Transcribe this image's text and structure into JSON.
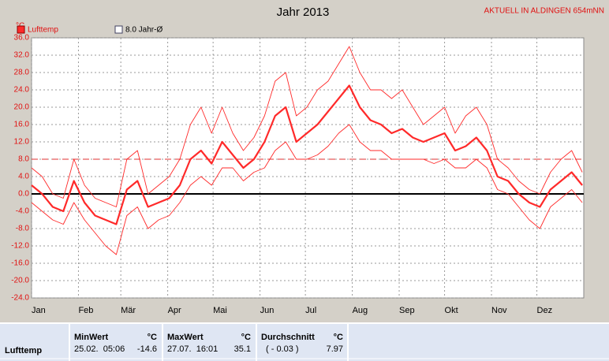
{
  "chart_data": {
    "type": "line",
    "title": "Jahr 2013",
    "station": "AKTUELL IN ALDINGEN 654mNN",
    "y_unit": "°C",
    "x": [
      1,
      8,
      15,
      22,
      29,
      36,
      43,
      50,
      57,
      64,
      71,
      78,
      85,
      92,
      99,
      106,
      113,
      120,
      127,
      134,
      141,
      148,
      155,
      162,
      169,
      176,
      183,
      190,
      197,
      204,
      211,
      218,
      225,
      232,
      239,
      246,
      253,
      260,
      267,
      274,
      281,
      288,
      295,
      302,
      309,
      316,
      323,
      330,
      337,
      344,
      351,
      358,
      365
    ],
    "series": [
      {
        "name": "Lufttemp",
        "color": "#ff2a2a",
        "width": 2.2,
        "values": [
          2,
          0,
          -3,
          -4,
          3,
          -2,
          -5,
          -6,
          -7,
          1,
          3,
          -3,
          -2,
          -1,
          2,
          8,
          10,
          7,
          12,
          9,
          6,
          8,
          12,
          18,
          20,
          12,
          14,
          16,
          19,
          22,
          25,
          20,
          17,
          16,
          14,
          15,
          13,
          12,
          13,
          14,
          10,
          11,
          13,
          10,
          4,
          3,
          0,
          -2,
          -3,
          1,
          3,
          5,
          2
        ]
      },
      {
        "color": "#ff2a2a",
        "width": 0.9,
        "values": [
          6,
          4,
          0,
          -1,
          8,
          2,
          -1,
          -2,
          -3,
          8,
          10,
          0,
          2,
          4,
          8,
          16,
          20,
          14,
          20,
          14,
          10,
          13,
          18,
          26,
          28,
          18,
          20,
          24,
          26,
          30,
          34,
          28,
          24,
          24,
          22,
          24,
          20,
          16,
          18,
          20,
          14,
          18,
          20,
          16,
          8,
          6,
          3,
          1,
          0,
          5,
          8,
          10,
          5
        ]
      },
      {
        "color": "#ff2a2a",
        "width": 0.9,
        "values": [
          -2,
          -4,
          -6,
          -7,
          -2,
          -6,
          -9,
          -12,
          -14,
          -5,
          -3,
          -8,
          -6,
          -5,
          -2,
          2,
          4,
          2,
          6,
          6,
          3,
          5,
          6,
          10,
          12,
          8,
          8,
          9,
          11,
          14,
          16,
          12,
          10,
          10,
          8,
          8,
          8,
          8,
          7,
          8,
          6,
          6,
          8,
          6,
          1,
          0,
          -3,
          -6,
          -8,
          -3,
          -1,
          1,
          -2
        ]
      }
    ],
    "reference": {
      "value": 8.0,
      "label": "8.0 Jahr-Ø",
      "color": "#e03030"
    },
    "xlim": [
      1,
      366
    ],
    "xticks": [
      {
        "value": 1,
        "label": "Jan"
      },
      {
        "value": 32,
        "label": "Feb"
      },
      {
        "value": 60,
        "label": "Mär"
      },
      {
        "value": 91,
        "label": "Apr"
      },
      {
        "value": 121,
        "label": "Mai"
      },
      {
        "value": 152,
        "label": "Jun"
      },
      {
        "value": 182,
        "label": "Jul"
      },
      {
        "value": 213,
        "label": "Aug"
      },
      {
        "value": 244,
        "label": "Sep"
      },
      {
        "value": 274,
        "label": "Okt"
      },
      {
        "value": 305,
        "label": "Nov"
      },
      {
        "value": 335,
        "label": "Dez"
      }
    ],
    "ylim": [
      -24,
      36
    ],
    "yticks": [
      {
        "value": 36,
        "label": "36.0"
      },
      {
        "value": 32,
        "label": "32.0"
      },
      {
        "value": 28,
        "label": "28.0"
      },
      {
        "value": 24,
        "label": "24.0"
      },
      {
        "value": 20,
        "label": "20.0"
      },
      {
        "value": 16,
        "label": "16.0"
      },
      {
        "value": 12,
        "label": "12.0"
      },
      {
        "value": 8,
        "label": "8.0"
      },
      {
        "value": 4,
        "label": "4.0"
      },
      {
        "value": 0,
        "label": "0.0"
      },
      {
        "value": -4,
        "label": "-4.0"
      },
      {
        "value": -8,
        "label": "-8.0"
      },
      {
        "value": -12,
        "label": "-12.0"
      },
      {
        "value": -16,
        "label": "-16.0"
      },
      {
        "value": -20,
        "label": "-20.0"
      },
      {
        "value": -24,
        "label": "-24.0"
      }
    ],
    "grid": true
  },
  "stats": {
    "headers": [
      "MinWert",
      "°C",
      "MaxWert",
      "°C",
      "Durchschnitt",
      "°C"
    ],
    "rows": [
      [
        "Lufttemp",
        "25.02.  05:06",
        "-14.6",
        "27.07.  16:01",
        "35.1",
        "( - 0.03 )",
        "7.97"
      ]
    ]
  }
}
